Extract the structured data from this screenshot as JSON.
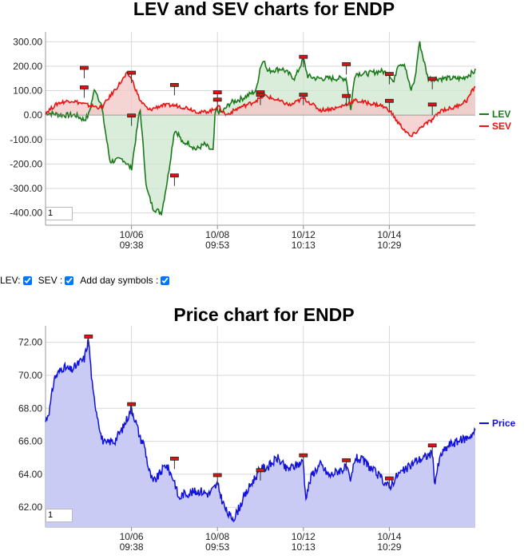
{
  "controls": {
    "lev_label": "LEV:",
    "sev_label": "SEV :",
    "day_symbols_label": "Add day symbols :",
    "lev_checked": true,
    "sev_checked": true,
    "day_symbols_checked": true
  },
  "colors": {
    "lev": "#1a7a1a",
    "sev": "#ee1111",
    "price": "#1111dd",
    "lev_fill": "#cde6cd",
    "sev_fill": "#f1c6c6",
    "overlap_fill": "#d9c8b8",
    "price_fill": "#c9cbf5",
    "marker": "#dd1111"
  },
  "chart_data": [
    {
      "type": "line",
      "title": "LEV and SEV charts for ENDP",
      "zoom_value": "1",
      "ylim": [
        -450,
        340
      ],
      "yticks": [
        "300.00",
        "200.00",
        "100.00",
        "0.00",
        "-100.00",
        "-200.00",
        "-300.00",
        "-400.00"
      ],
      "ytick_values": [
        300,
        200,
        100,
        0,
        -100,
        -200,
        -300,
        -400
      ],
      "xticks": [
        {
          "date": "10/06",
          "time": "09:38",
          "pos": 0.2
        },
        {
          "date": "10/08",
          "time": "09:53",
          "pos": 0.4
        },
        {
          "date": "10/12",
          "time": "10:13",
          "pos": 0.6
        },
        {
          "date": "10/14",
          "time": "10:29",
          "pos": 0.8
        }
      ],
      "legend_position": "right",
      "grid": true,
      "series": [
        {
          "name": "LEV",
          "x": [
            0,
            0.04,
            0.07,
            0.09,
            0.1,
            0.115,
            0.13,
            0.15,
            0.18,
            0.2,
            0.22,
            0.235,
            0.25,
            0.27,
            0.285,
            0.3,
            0.31,
            0.32,
            0.33,
            0.35,
            0.37,
            0.39,
            0.395,
            0.41,
            0.43,
            0.46,
            0.49,
            0.5,
            0.51,
            0.515,
            0.55,
            0.58,
            0.6,
            0.61,
            0.63,
            0.66,
            0.7,
            0.71,
            0.72,
            0.75,
            0.78,
            0.8,
            0.81,
            0.82,
            0.835,
            0.85,
            0.86,
            0.87,
            0.89,
            0.9,
            0.93,
            0.97,
            1.0
          ],
          "values": [
            10,
            0,
            0,
            -20,
            0,
            110,
            40,
            -190,
            -180,
            -220,
            30,
            -300,
            -380,
            -400,
            -250,
            -60,
            -80,
            -120,
            -110,
            -140,
            -120,
            -150,
            20,
            10,
            50,
            70,
            100,
            200,
            230,
            180,
            190,
            150,
            230,
            160,
            150,
            150,
            150,
            20,
            170,
            170,
            180,
            170,
            130,
            210,
            210,
            100,
            150,
            300,
            150,
            150,
            150,
            150,
            180
          ]
        },
        {
          "name": "SEV",
          "x": [
            0,
            0.03,
            0.06,
            0.1,
            0.13,
            0.16,
            0.19,
            0.2,
            0.22,
            0.24,
            0.27,
            0.3,
            0.33,
            0.36,
            0.39,
            0.4,
            0.42,
            0.45,
            0.48,
            0.51,
            0.54,
            0.57,
            0.6,
            0.64,
            0.68,
            0.72,
            0.75,
            0.78,
            0.8,
            0.82,
            0.85,
            0.88,
            0.9,
            0.92,
            0.95,
            0.98,
            1.0
          ],
          "values": [
            10,
            50,
            60,
            40,
            30,
            100,
            170,
            150,
            60,
            20,
            40,
            40,
            30,
            10,
            20,
            40,
            0,
            30,
            50,
            80,
            60,
            40,
            70,
            20,
            30,
            60,
            50,
            40,
            20,
            -30,
            -90,
            -40,
            -20,
            20,
            30,
            60,
            120
          ]
        }
      ],
      "day_markers": [
        {
          "series": "LEV",
          "x": 0.09,
          "value": 190
        },
        {
          "series": "LEV",
          "x": 0.09,
          "value": 110
        },
        {
          "series": "SEV",
          "x": 0.2,
          "value": 170
        },
        {
          "series": "SEV",
          "x": 0.2,
          "value": -5
        },
        {
          "series": "LEV",
          "x": 0.3,
          "value": 120
        },
        {
          "series": "LEV",
          "x": 0.3,
          "value": -250
        },
        {
          "series": "LEV",
          "x": 0.4,
          "value": 90
        },
        {
          "series": "LEV",
          "x": 0.4,
          "value": 60
        },
        {
          "series": "LEV",
          "x": 0.5,
          "value": 90
        },
        {
          "series": "LEV",
          "x": 0.5,
          "value": 80
        },
        {
          "series": "LEV",
          "x": 0.6,
          "value": 235
        },
        {
          "series": "SEV",
          "x": 0.6,
          "value": 80
        },
        {
          "series": "LEV",
          "x": 0.7,
          "value": 205
        },
        {
          "series": "SEV",
          "x": 0.7,
          "value": 75
        },
        {
          "series": "LEV",
          "x": 0.8,
          "value": 165
        },
        {
          "series": "SEV",
          "x": 0.8,
          "value": 55
        },
        {
          "series": "LEV",
          "x": 0.9,
          "value": 145
        },
        {
          "series": "SEV",
          "x": 0.9,
          "value": 40
        }
      ]
    },
    {
      "type": "area",
      "title": "Price chart for ENDP",
      "zoom_value": "1",
      "ylim": [
        60.8,
        73
      ],
      "yticks": [
        "72.00",
        "70.00",
        "68.00",
        "66.00",
        "64.00",
        "62.00"
      ],
      "ytick_values": [
        72,
        70,
        68,
        66,
        64,
        62
      ],
      "xticks": [
        {
          "date": "10/06",
          "time": "09:38",
          "pos": 0.2
        },
        {
          "date": "10/08",
          "time": "09:53",
          "pos": 0.4
        },
        {
          "date": "10/12",
          "time": "10:13",
          "pos": 0.6
        },
        {
          "date": "10/14",
          "time": "10:29",
          "pos": 0.8
        }
      ],
      "legend_position": "right",
      "grid": true,
      "series": [
        {
          "name": "Price",
          "x": [
            0,
            0.01,
            0.02,
            0.04,
            0.06,
            0.08,
            0.09,
            0.1,
            0.11,
            0.125,
            0.13,
            0.14,
            0.15,
            0.16,
            0.18,
            0.2,
            0.21,
            0.22,
            0.23,
            0.24,
            0.25,
            0.26,
            0.28,
            0.3,
            0.31,
            0.32,
            0.34,
            0.36,
            0.38,
            0.4,
            0.41,
            0.42,
            0.43,
            0.44,
            0.46,
            0.48,
            0.5,
            0.52,
            0.54,
            0.56,
            0.58,
            0.6,
            0.605,
            0.62,
            0.64,
            0.66,
            0.68,
            0.7,
            0.71,
            0.72,
            0.74,
            0.76,
            0.78,
            0.8,
            0.82,
            0.84,
            0.86,
            0.88,
            0.9,
            0.905,
            0.92,
            0.94,
            0.96,
            0.98,
            1.0
          ],
          "values": [
            67.2,
            68.0,
            69.8,
            70.5,
            70.3,
            70.8,
            71.0,
            72.2,
            69.0,
            67.0,
            66.2,
            65.8,
            66.0,
            66.0,
            66.8,
            68.0,
            67.2,
            66.2,
            65.8,
            64.3,
            63.5,
            63.8,
            64.6,
            63.6,
            62.5,
            62.8,
            62.9,
            63.0,
            62.8,
            63.4,
            62.5,
            61.8,
            61.4,
            61.4,
            62.5,
            63.5,
            64.3,
            64.5,
            65.0,
            64.3,
            64.5,
            64.8,
            62.6,
            64.0,
            64.6,
            63.9,
            64.2,
            64.4,
            63.5,
            65.0,
            64.8,
            64.3,
            63.8,
            63.2,
            64.0,
            64.3,
            64.8,
            65.0,
            65.3,
            63.5,
            65.2,
            65.8,
            66.0,
            66.2,
            66.6
          ]
        }
      ],
      "day_markers": [
        {
          "series": "Price",
          "x": 0.1,
          "value": 72.3
        },
        {
          "series": "Price",
          "x": 0.2,
          "value": 68.2
        },
        {
          "series": "Price",
          "x": 0.3,
          "value": 64.9
        },
        {
          "series": "Price",
          "x": 0.4,
          "value": 63.9
        },
        {
          "series": "Price",
          "x": 0.5,
          "value": 64.2
        },
        {
          "series": "Price",
          "x": 0.6,
          "value": 65.1
        },
        {
          "series": "Price",
          "x": 0.7,
          "value": 64.8
        },
        {
          "series": "Price",
          "x": 0.8,
          "value": 63.7
        },
        {
          "series": "Price",
          "x": 0.9,
          "value": 65.7
        }
      ]
    }
  ]
}
